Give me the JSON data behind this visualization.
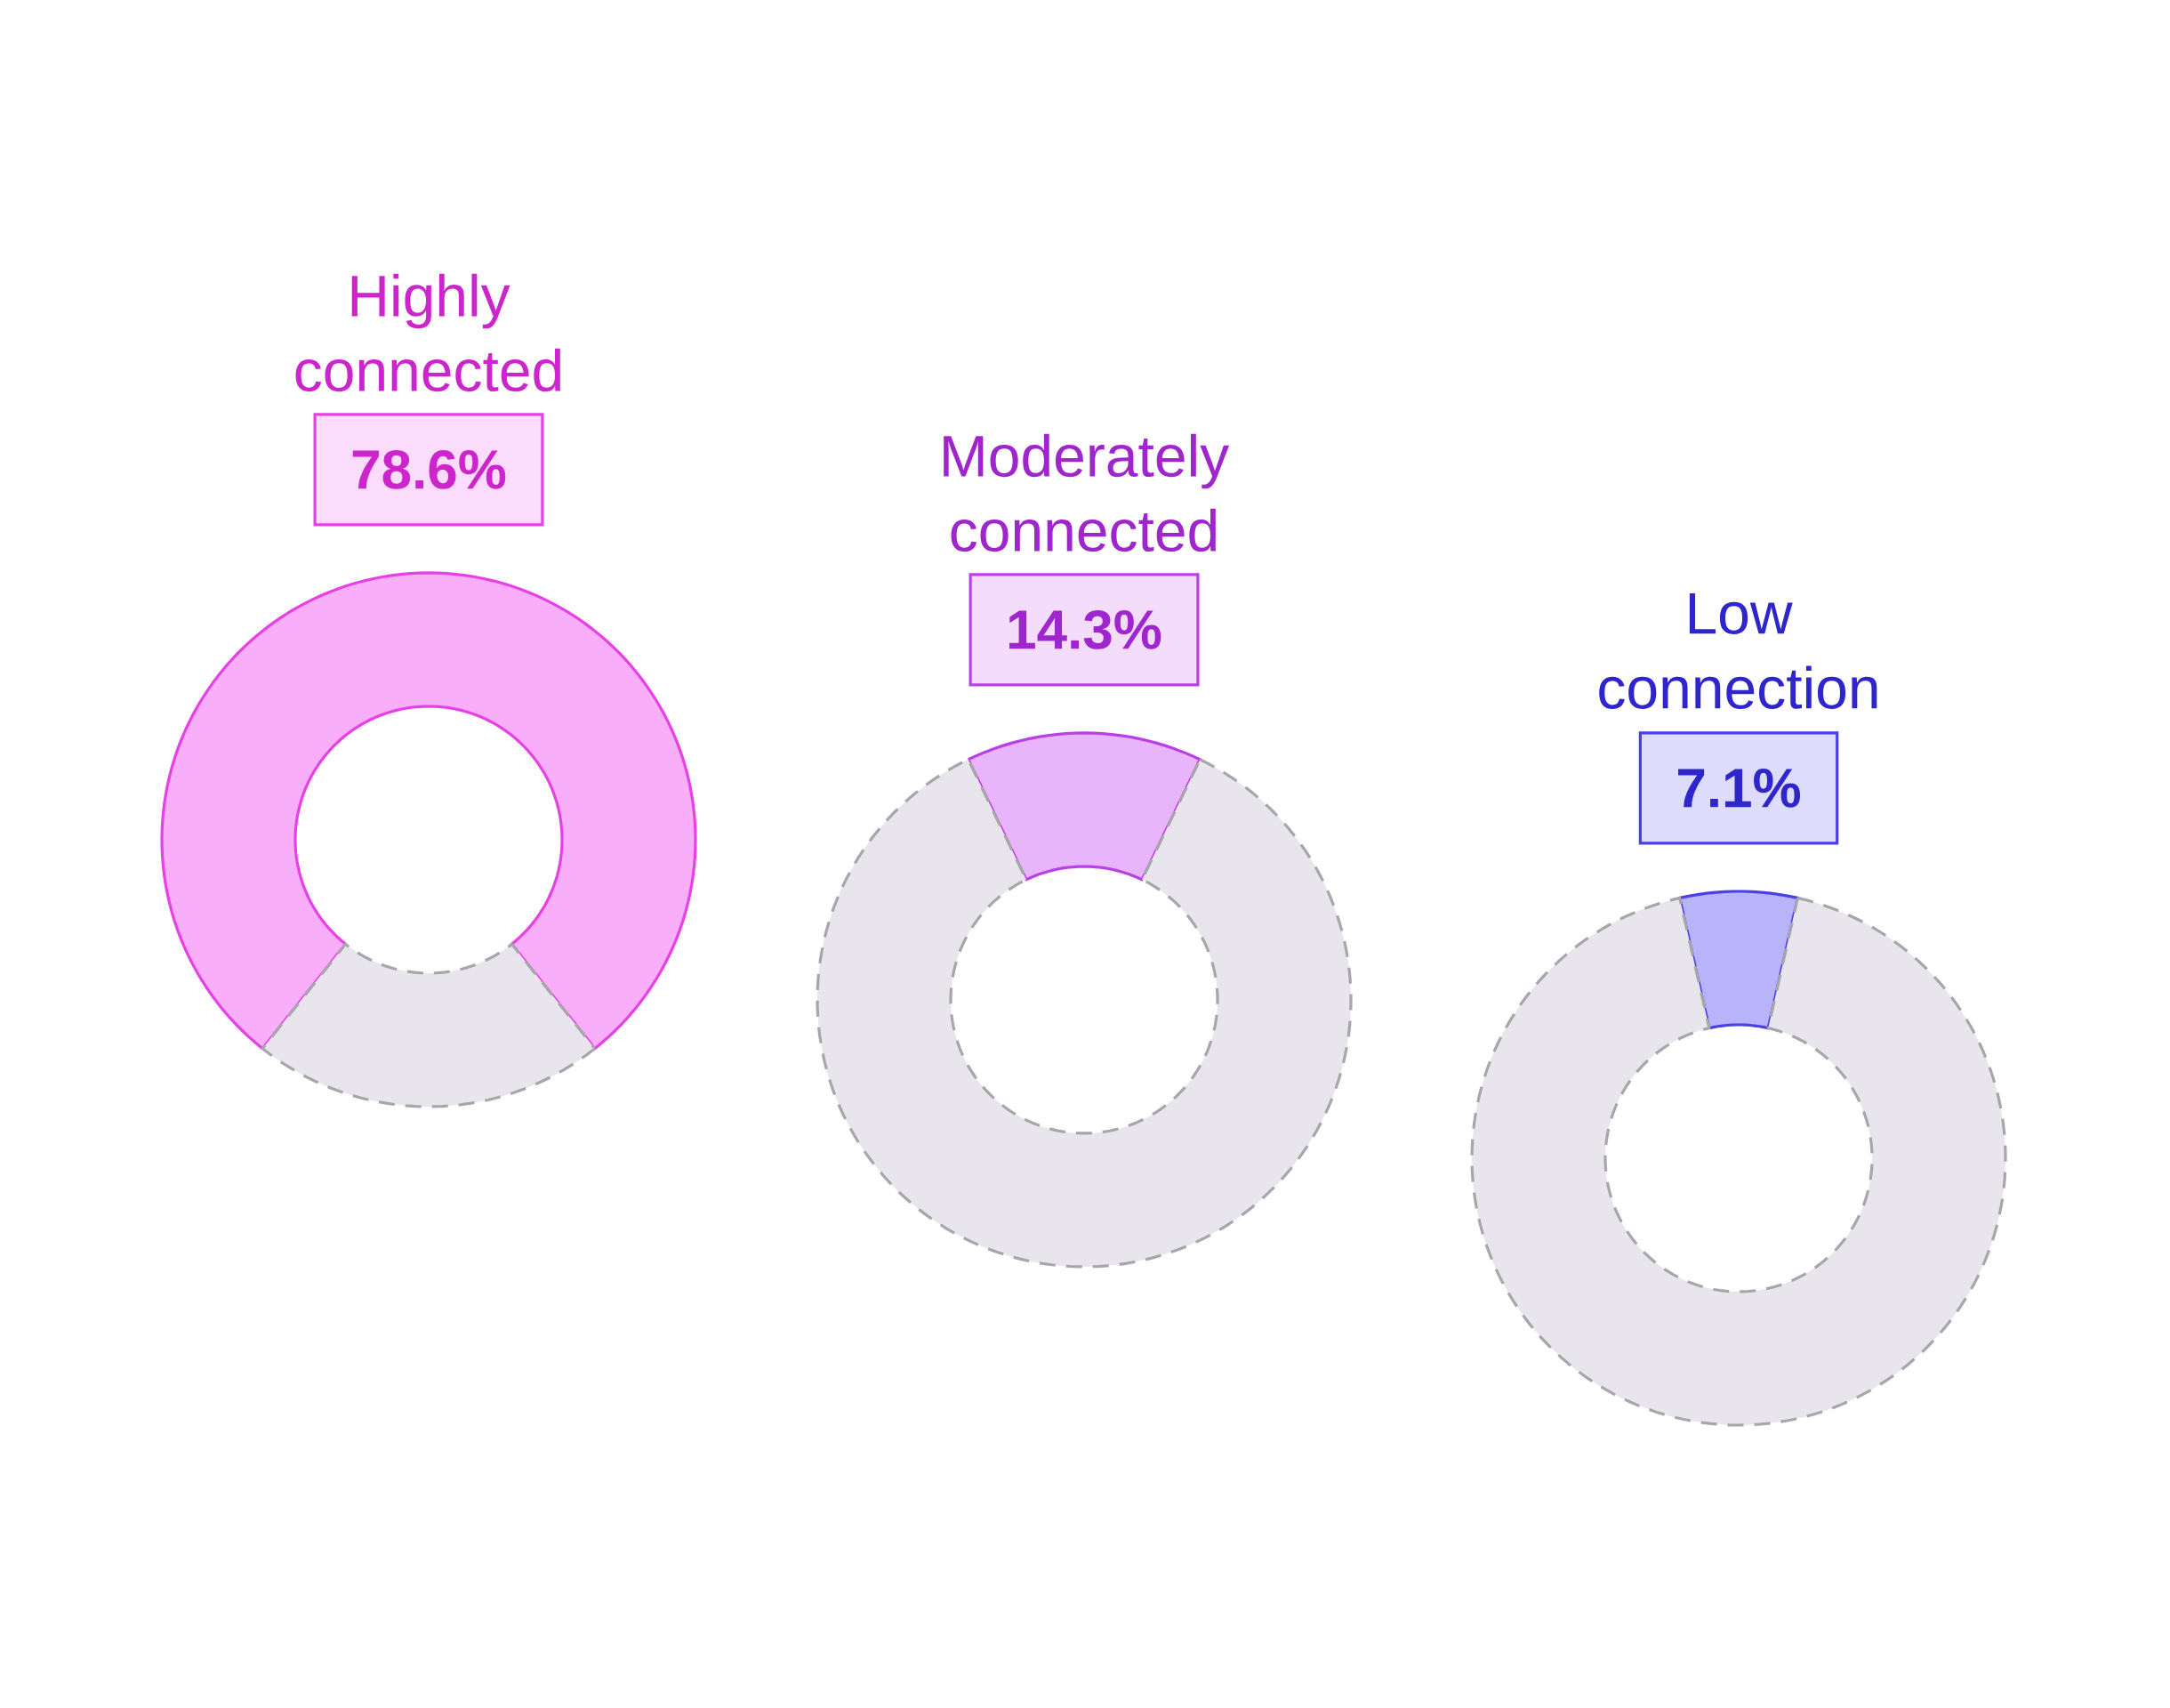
{
  "chart_data": [
    {
      "type": "donut",
      "categories": [
        "Highly connected",
        null
      ],
      "values": [
        78.6,
        21.4
      ],
      "colors": [
        "#f9aef9",
        "#e8e6ec"
      ],
      "value_labels": [
        "78.6%",
        null
      ]
    },
    {
      "type": "donut",
      "categories": [
        "Moderately connected",
        null
      ],
      "values": [
        14.3,
        85.7
      ],
      "colors": [
        "#e8b4fb",
        "#e8e6ec"
      ],
      "value_labels": [
        "14.3%",
        null
      ]
    },
    {
      "type": "donut",
      "categories": [
        "Low connection",
        null
      ],
      "values": [
        7.1,
        92.9
      ],
      "colors": [
        "#b8b4fc",
        "#e8e6ec"
      ],
      "value_labels": [
        "7.1%",
        null
      ]
    }
  ]
}
